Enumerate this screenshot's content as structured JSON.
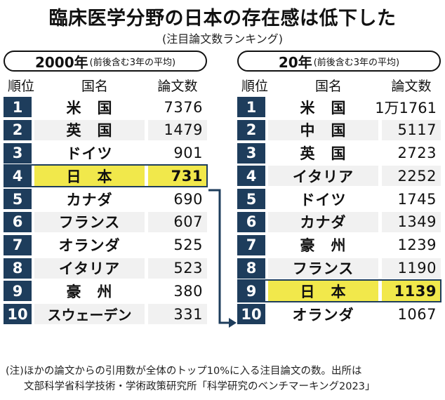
{
  "title": "臨床医学分野の日本の存在感は低下した",
  "subtitle": "(注目論文数ランキング)",
  "columns": {
    "rank": "順位",
    "country": "国名",
    "count": "論文数"
  },
  "left": {
    "period_main": "2000年",
    "period_sub": "(前後含む3年の平均)",
    "rows": [
      {
        "rank": "1",
        "country": "米　国",
        "count": "7376"
      },
      {
        "rank": "2",
        "country": "英　国",
        "count": "1479"
      },
      {
        "rank": "3",
        "country": "ドイツ",
        "count": "901"
      },
      {
        "rank": "4",
        "country": "日　本",
        "count": "731"
      },
      {
        "rank": "5",
        "country": "カナダ",
        "count": "690"
      },
      {
        "rank": "6",
        "country": "フランス",
        "count": "607"
      },
      {
        "rank": "7",
        "country": "オランダ",
        "count": "525"
      },
      {
        "rank": "8",
        "country": "イタリア",
        "count": "523"
      },
      {
        "rank": "9",
        "country": "豪　州",
        "count": "380"
      },
      {
        "rank": "10",
        "country": "スウェーデン",
        "count": "331"
      }
    ]
  },
  "right": {
    "period_main": "20年",
    "period_sub": "(前後含む3年の平均)",
    "rows": [
      {
        "rank": "1",
        "country": "米　国",
        "count": "1万1761"
      },
      {
        "rank": "2",
        "country": "中　国",
        "count": "5117"
      },
      {
        "rank": "3",
        "country": "英　国",
        "count": "2723"
      },
      {
        "rank": "4",
        "country": "イタリア",
        "count": "2252"
      },
      {
        "rank": "5",
        "country": "ドイツ",
        "count": "1745"
      },
      {
        "rank": "6",
        "country": "カナダ",
        "count": "1349"
      },
      {
        "rank": "7",
        "country": "豪　州",
        "count": "1239"
      },
      {
        "rank": "8",
        "country": "フランス",
        "count": "1190"
      },
      {
        "rank": "9",
        "country": "日　本",
        "count": "1139"
      },
      {
        "rank": "10",
        "country": "オランダ",
        "count": "1067"
      }
    ]
  },
  "note": {
    "line1": "(注)ほかの論文からの引用数が全体のトップ10%に入る注目論文の数。出所は",
    "line2": "文部科学省科学技術・学術政策研究所「科学研究のベンチマーキング2023」"
  },
  "colors": {
    "navy": "#1e3d5c",
    "highlight": "#f1e84b",
    "stripe": "#f1f1f1"
  }
}
